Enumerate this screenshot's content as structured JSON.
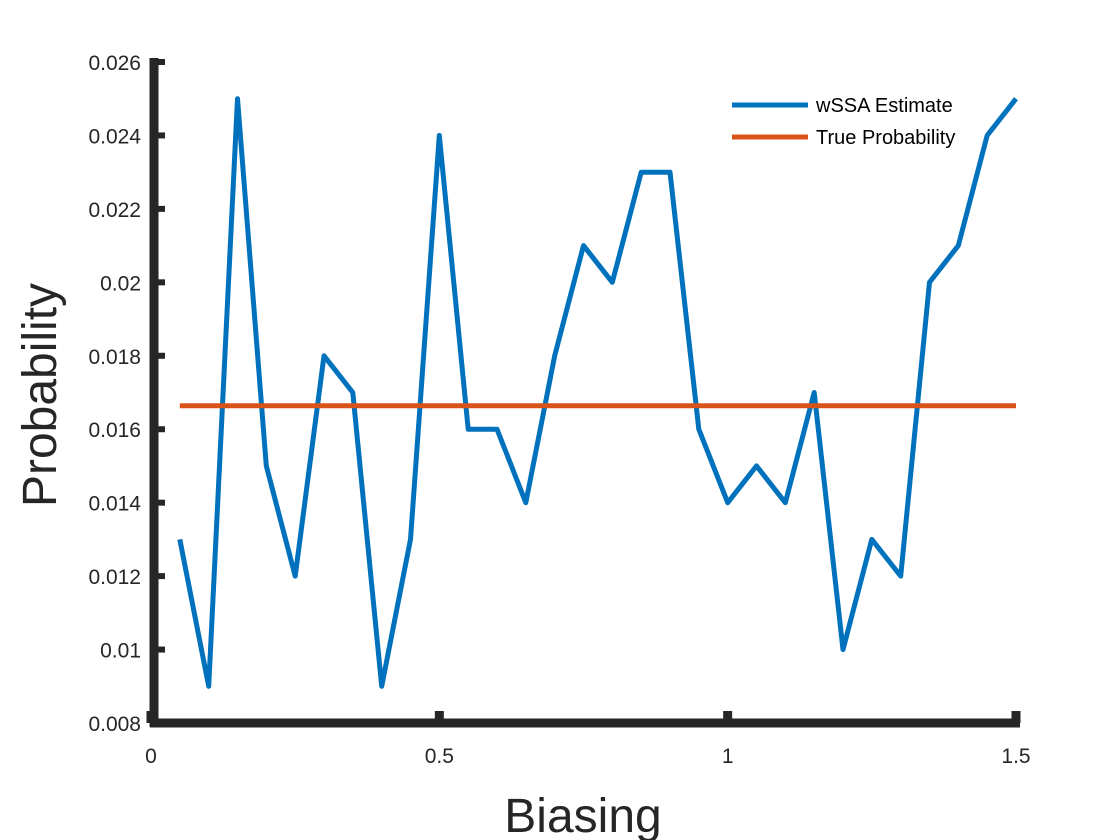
{
  "chart_data": {
    "type": "line",
    "xlabel": "Biasing",
    "ylabel": "Probability",
    "xlim": [
      0,
      1.5
    ],
    "ylim": [
      0.008,
      0.026
    ],
    "x_ticks": [
      0,
      0.5,
      1,
      1.5
    ],
    "x_tick_labels": [
      "0",
      "0.5",
      "1",
      "1.5"
    ],
    "y_ticks": [
      0.008,
      0.01,
      0.012,
      0.014,
      0.016,
      0.018,
      0.02,
      0.022,
      0.024,
      0.026
    ],
    "y_tick_labels": [
      "0.008",
      "0.01",
      "0.012",
      "0.014",
      "0.016",
      "0.018",
      "0.02",
      "0.022",
      "0.024",
      "0.026"
    ],
    "grid": false,
    "legend_position": "top-right",
    "series": [
      {
        "name": "wSSA Estimate",
        "color": "#0072BD",
        "x": [
          0.05,
          0.1,
          0.15,
          0.2,
          0.25,
          0.3,
          0.35,
          0.4,
          0.45,
          0.5,
          0.55,
          0.6,
          0.65,
          0.7,
          0.75,
          0.8,
          0.85,
          0.9,
          0.95,
          1.0,
          1.05,
          1.1,
          1.15,
          1.2,
          1.25,
          1.3,
          1.35,
          1.4,
          1.45,
          1.5
        ],
        "y": [
          0.013,
          0.009,
          0.025,
          0.015,
          0.012,
          0.018,
          0.017,
          0.009,
          0.013,
          0.024,
          0.016,
          0.016,
          0.014,
          0.018,
          0.021,
          0.02,
          0.023,
          0.023,
          0.016,
          0.014,
          0.015,
          0.014,
          0.017,
          0.01,
          0.013,
          0.012,
          0.02,
          0.021,
          0.024,
          0.025
        ]
      },
      {
        "name": "True Probability",
        "color": "#D95319",
        "x": [
          0.05,
          1.5
        ],
        "y": [
          0.01664,
          0.01664
        ]
      }
    ]
  }
}
